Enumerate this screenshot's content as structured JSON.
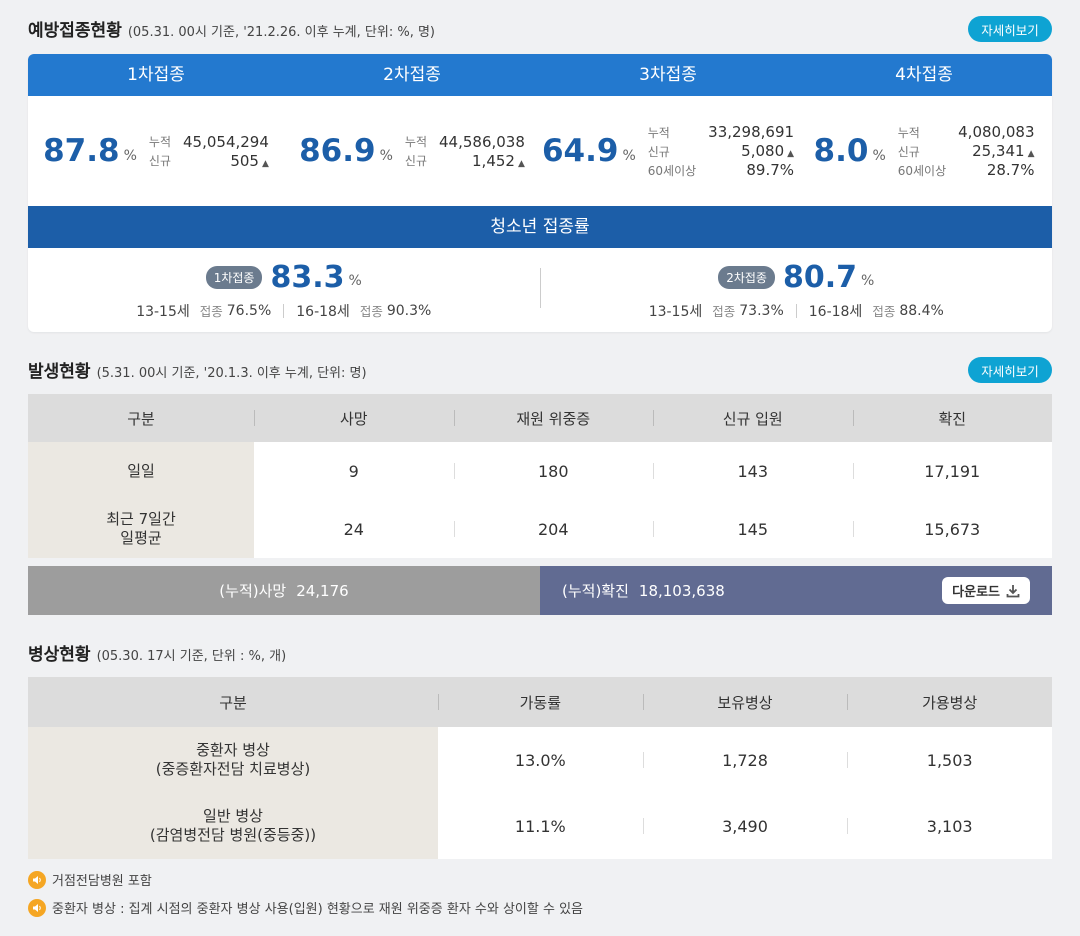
{
  "vaccination": {
    "title": "예방접종현황",
    "subtitle": "(05.31. 00시 기준, '21.2.26. 이후 누계, 단위: %, 명)",
    "more_label": "자세히보기",
    "doses": [
      {
        "label": "1차접종",
        "pct": "87.8",
        "unit": "%",
        "cum_label": "누적",
        "cum": "45,054,294",
        "new_label": "신규",
        "new": "505"
      },
      {
        "label": "2차접종",
        "pct": "86.9",
        "unit": "%",
        "cum_label": "누적",
        "cum": "44,586,038",
        "new_label": "신규",
        "new": "1,452"
      },
      {
        "label": "3차접종",
        "pct": "64.9",
        "unit": "%",
        "cum_label": "누적",
        "cum": "33,298,691",
        "new_label": "신규",
        "new": "5,080",
        "age_label": "60세이상",
        "age_pct": "89.7%"
      },
      {
        "label": "4차접종",
        "pct": "8.0",
        "unit": "%",
        "cum_label": "누적",
        "cum": "4,080,083",
        "new_label": "신규",
        "new": "25,341",
        "age_label": "60세이상",
        "age_pct": "28.7%"
      }
    ],
    "teen": {
      "title": "청소년 접종률",
      "doses": [
        {
          "label": "1차접종",
          "pct": "83.3",
          "unit": "%",
          "age1": "13-15세",
          "age1_label": "접종",
          "age1_pct": "76.5%",
          "age2": "16-18세",
          "age2_label": "접종",
          "age2_pct": "90.3%"
        },
        {
          "label": "2차접종",
          "pct": "80.7",
          "unit": "%",
          "age1": "13-15세",
          "age1_label": "접종",
          "age1_pct": "73.3%",
          "age2": "16-18세",
          "age2_label": "접종",
          "age2_pct": "88.4%"
        }
      ]
    }
  },
  "occurrence": {
    "title": "발생현황",
    "subtitle": "(5.31. 00시 기준, '20.1.3. 이후 누계, 단위: 명)",
    "more_label": "자세히보기",
    "headers": [
      "구분",
      "사망",
      "재원 위중증",
      "신규 입원",
      "확진"
    ],
    "rows": [
      {
        "label": "일일",
        "values": [
          "9",
          "180",
          "143",
          "17,191"
        ]
      },
      {
        "label": "최근 7일간\n일평균",
        "values": [
          "24",
          "204",
          "145",
          "15,673"
        ]
      }
    ],
    "cum_death_label": "(누적)사망",
    "cum_death": "24,176",
    "cum_confirmed_label": "(누적)확진",
    "cum_confirmed": "18,103,638",
    "download_label": "다운로드"
  },
  "beds": {
    "title": "병상현황",
    "subtitle": "(05.30. 17시 기준, 단위 : %, 개)",
    "headers": [
      "구분",
      "가동률",
      "보유병상",
      "가용병상"
    ],
    "rows": [
      {
        "label": "중환자 병상\n(중증환자전담 치료병상)",
        "values": [
          "13.0%",
          "1,728",
          "1,503"
        ]
      },
      {
        "label": "일반 병상\n(감염병전담 병원(중등중))",
        "values": [
          "11.1%",
          "3,490",
          "3,103"
        ]
      }
    ],
    "notes": [
      "거점전담병원 포함",
      "중환자 병상 : 집계 시점의 중환자 병상 사용(입원) 현황으로 재원 위중증 환자 수와 상이할 수 있음"
    ]
  },
  "colors": {
    "primary_blue": "#2379cf",
    "dark_blue": "#1c5ea8",
    "accent_cyan": "#0ea3d3",
    "cum_confirmed_bg": "#616b92",
    "cum_death_bg": "#9d9d9d"
  }
}
